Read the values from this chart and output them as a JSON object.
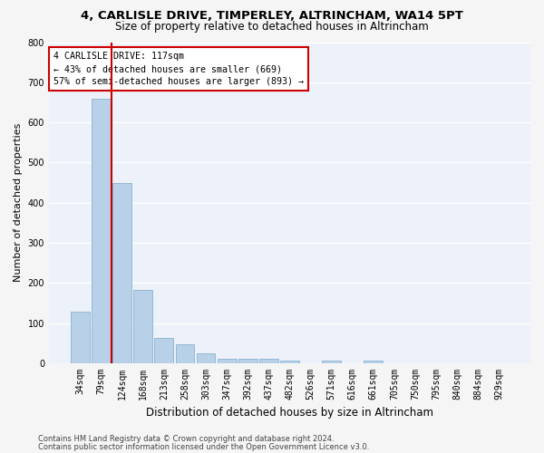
{
  "title": "4, CARLISLE DRIVE, TIMPERLEY, ALTRINCHAM, WA14 5PT",
  "subtitle": "Size of property relative to detached houses in Altrincham",
  "xlabel": "Distribution of detached houses by size in Altrincham",
  "ylabel": "Number of detached properties",
  "categories": [
    "34sqm",
    "79sqm",
    "124sqm",
    "168sqm",
    "213sqm",
    "258sqm",
    "303sqm",
    "347sqm",
    "392sqm",
    "437sqm",
    "482sqm",
    "526sqm",
    "571sqm",
    "616sqm",
    "661sqm",
    "705sqm",
    "750sqm",
    "795sqm",
    "840sqm",
    "884sqm",
    "929sqm"
  ],
  "values": [
    128,
    660,
    450,
    183,
    63,
    48,
    25,
    11,
    12,
    11,
    7,
    0,
    6,
    0,
    7,
    0,
    0,
    0,
    0,
    0,
    0
  ],
  "bar_color": "#b8d0e8",
  "bar_edge_color": "#7aaac8",
  "property_line_color": "#cc0000",
  "annotation_line1": "4 CARLISLE DRIVE: 117sqm",
  "annotation_line2": "← 43% of detached houses are smaller (669)",
  "annotation_line3": "57% of semi-detached houses are larger (893) →",
  "annotation_box_color": "#ffffff",
  "annotation_box_edge_color": "#cc0000",
  "ylim": [
    0,
    800
  ],
  "yticks": [
    0,
    100,
    200,
    300,
    400,
    500,
    600,
    700,
    800
  ],
  "bg_color": "#edf1f9",
  "fig_bg_color": "#f5f5f5",
  "grid_color": "#ffffff",
  "footer_line1": "Contains HM Land Registry data © Crown copyright and database right 2024.",
  "footer_line2": "Contains public sector information licensed under the Open Government Licence v3.0.",
  "title_fontsize": 9.5,
  "subtitle_fontsize": 8.5,
  "tick_fontsize": 7,
  "ylabel_fontsize": 8,
  "xlabel_fontsize": 8.5,
  "footer_fontsize": 6
}
